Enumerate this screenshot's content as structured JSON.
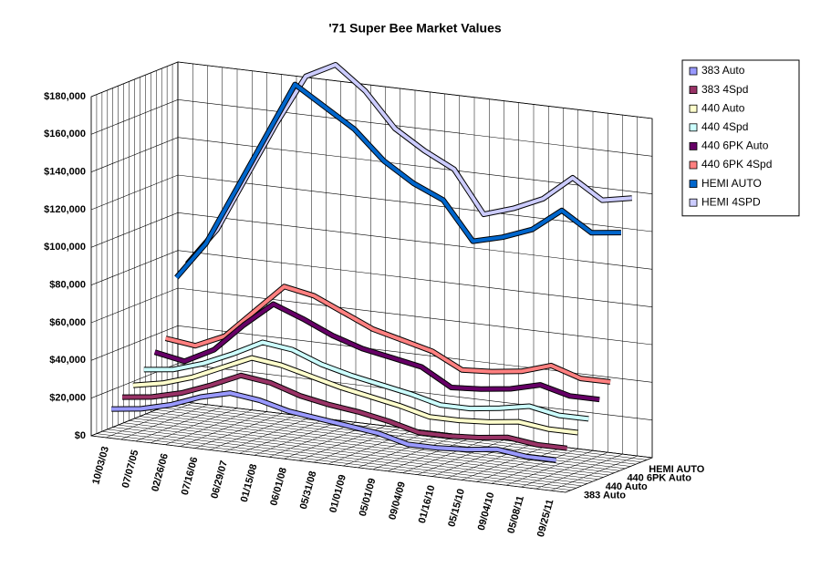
{
  "chart_data": {
    "type": "line3d",
    "title": "'71 Super Bee Market Values",
    "categories": [
      "10/03/03",
      "07/07/05",
      "02/26/06",
      "07/16/06",
      "06/29/07",
      "01/15/08",
      "06/01/08",
      "05/31/08",
      "01/01/09",
      "05/01/09",
      "09/04/09",
      "01/16/10",
      "05/15/10",
      "09/04/10",
      "05/08/11",
      "09/25/11"
    ],
    "series": [
      {
        "name": "383 Auto",
        "color": "#9999ff",
        "values": [
          14000,
          16000,
          20000,
          26000,
          30000,
          28000,
          24000,
          22000,
          20000,
          18000,
          14000,
          14000,
          15000,
          17000,
          15000,
          15000
        ]
      },
      {
        "name": "383 4Spd",
        "color": "#993366",
        "values": [
          18000,
          20000,
          24000,
          30000,
          37000,
          35000,
          30000,
          27000,
          25000,
          22000,
          18000,
          18000,
          19000,
          21000,
          19000,
          19000
        ]
      },
      {
        "name": "440 Auto",
        "color": "#ffffcc",
        "values": [
          22000,
          25000,
          30000,
          37000,
          44000,
          42000,
          38000,
          34000,
          31000,
          28000,
          24000,
          24000,
          25000,
          27000,
          25000,
          25000
        ]
      },
      {
        "name": "440 4Spd",
        "color": "#ccffff",
        "values": [
          28000,
          30000,
          35000,
          42000,
          50000,
          48000,
          42000,
          38000,
          35000,
          32000,
          28000,
          28000,
          30000,
          33000,
          30000,
          30000
        ]
      },
      {
        "name": "440 6PK Auto",
        "color": "#660066",
        "values": [
          35000,
          32000,
          40000,
          55000,
          68000,
          62000,
          55000,
          50000,
          47000,
          44000,
          35000,
          36000,
          38000,
          42000,
          38000,
          38000
        ]
      },
      {
        "name": "440 6PK 4Spd",
        "color": "#ff8080",
        "values": [
          40000,
          38000,
          45000,
          60000,
          75000,
          72000,
          65000,
          58000,
          54000,
          50000,
          42000,
          43000,
          45000,
          50000,
          45000,
          45000
        ]
      },
      {
        "name": "HEMI AUTO",
        "color": "#0066cc",
        "values": [
          70000,
          90000,
          120000,
          150000,
          180000,
          170000,
          160000,
          145000,
          135000,
          128000,
          108000,
          112000,
          118000,
          130000,
          120000,
          122000
        ]
      },
      {
        "name": "HEMI 4SPD",
        "color": "#ccccff",
        "values": [
          75000,
          95000,
          125000,
          155000,
          182000,
          190000,
          178000,
          160000,
          150000,
          142000,
          120000,
          125000,
          132000,
          145000,
          135000,
          138000
        ]
      }
    ],
    "ylim": [
      0,
      180000
    ],
    "yticks": [
      {
        "value": 0,
        "label": "$0"
      },
      {
        "value": 20000,
        "label": "$20,000"
      },
      {
        "value": 40000,
        "label": "$40,000"
      },
      {
        "value": 60000,
        "label": "$60,000"
      },
      {
        "value": 80000,
        "label": "$80,000"
      },
      {
        "value": 100000,
        "label": "$100,000"
      },
      {
        "value": 120000,
        "label": "$120,000"
      },
      {
        "value": 140000,
        "label": "$140,000"
      },
      {
        "value": 160000,
        "label": "$160,000"
      },
      {
        "value": 180000,
        "label": "$180,000"
      }
    ],
    "grid": true,
    "legend": "right"
  }
}
